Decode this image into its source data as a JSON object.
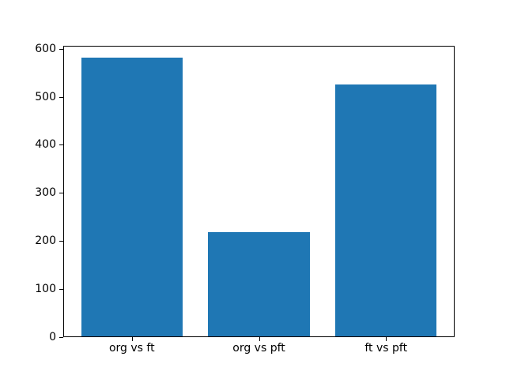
{
  "chart_data": {
    "type": "bar",
    "title": "",
    "xlabel": "",
    "ylabel": "",
    "categories": [
      "org vs ft",
      "org vs pft",
      "ft vs pft"
    ],
    "values": [
      580,
      216,
      524
    ],
    "yticks": [
      0,
      100,
      200,
      300,
      400,
      500,
      600
    ],
    "ylim": [
      0,
      606
    ],
    "bar_color": "#1f77b4",
    "axis_color": "#000000",
    "background_color": "#ffffff",
    "grid": false,
    "legend": null
  }
}
